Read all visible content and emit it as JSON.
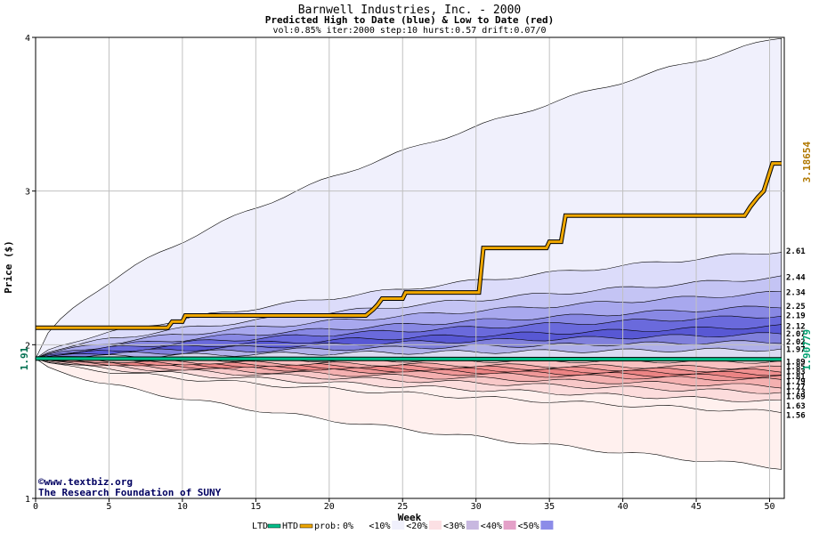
{
  "chart_data": {
    "type": "area",
    "title": "Barnwell Industries, Inc. - 2000",
    "subtitle": "Predicted High to Date (blue) &  Low to Date (red)",
    "params": "vol:0.85% iter:2000 step:10 hurst:0.57 drift:0.07/0",
    "xlabel": "Week",
    "ylabel": "Price ($)",
    "xlim": [
      0,
      51
    ],
    "ylim": [
      1,
      4
    ],
    "x_ticks": [
      "0",
      "5",
      "10",
      "15",
      "20",
      "25",
      "30",
      "35",
      "40",
      "45",
      "50"
    ],
    "y_ticks": [
      "1",
      "2",
      "3",
      "4"
    ],
    "start_value_label": "1.91",
    "ltd_value_label": "1.90779",
    "htd_value_label": "3.18654",
    "upper_band_labels": [
      "2.61",
      "2.44",
      "2.34",
      "2.25",
      "2.19",
      "2.12",
      "2.07",
      "2.02",
      "1.97"
    ],
    "lower_band_labels": [
      "1.89",
      "1.85",
      "1.83",
      "1.81",
      "1.79",
      "1.77",
      "1.73",
      "1.69",
      "1.63",
      "1.56"
    ],
    "upper_band_final": [
      4.0,
      2.61,
      2.44,
      2.34,
      2.25,
      2.19,
      2.12,
      2.07,
      2.02,
      1.97
    ],
    "lower_band_final": [
      1.89,
      1.85,
      1.83,
      1.81,
      1.79,
      1.77,
      1.73,
      1.69,
      1.63,
      1.56,
      1.2
    ],
    "htd_series": [
      [
        0,
        2.11
      ],
      [
        9,
        2.11
      ],
      [
        9.3,
        2.15
      ],
      [
        10,
        2.15
      ],
      [
        10.2,
        2.19
      ],
      [
        22.5,
        2.19
      ],
      [
        23,
        2.23
      ],
      [
        23.3,
        2.26
      ],
      [
        23.6,
        2.3
      ],
      [
        25,
        2.3
      ],
      [
        25.2,
        2.34
      ],
      [
        30.2,
        2.34
      ],
      [
        30.5,
        2.63
      ],
      [
        34.8,
        2.63
      ],
      [
        35,
        2.67
      ],
      [
        35.8,
        2.67
      ],
      [
        36.1,
        2.84
      ],
      [
        48.3,
        2.84
      ],
      [
        48.7,
        2.9
      ],
      [
        49.2,
        2.96
      ],
      [
        49.6,
        3.0
      ],
      [
        50.2,
        3.18
      ],
      [
        50.8,
        3.18
      ]
    ],
    "ltd_series": [
      [
        0,
        1.91
      ],
      [
        50.8,
        1.905
      ]
    ],
    "footer": {
      "copyright": "©www.textbiz.org",
      "org": "The Research Foundation of SUNY"
    },
    "legend": {
      "ltd": "LTD",
      "htd": "HTD",
      "prob_label": "prob:",
      "bands": [
        "0%",
        "<10%",
        "<20%",
        "<30%",
        "<40%",
        "<50%"
      ]
    },
    "colors": {
      "ltd": "#00c08a",
      "htd": "#f0a800",
      "grid": "#c0c0c0",
      "upper_bands": [
        "#f0f0fc",
        "#dcdcfa",
        "#c4c4f4",
        "#a8a8ee",
        "#8888e4",
        "#6a6adc",
        "#5858d4",
        "#8080dc",
        "#b0b0e8",
        "#dadaf2"
      ],
      "lower_bands": [
        "#fcd8d8",
        "#f8c0c0",
        "#f4a8a8",
        "#f09090",
        "#ec8484",
        "#f09898",
        "#f4b0b0",
        "#f8c8c8",
        "#fcdcdc",
        "#fff0ee"
      ],
      "legend_swatches": [
        "#ffffff",
        "#f0f0fc",
        "#fce0e4",
        "#c8b8e0",
        "#e4a0c8",
        "#8c8ce8"
      ]
    }
  }
}
